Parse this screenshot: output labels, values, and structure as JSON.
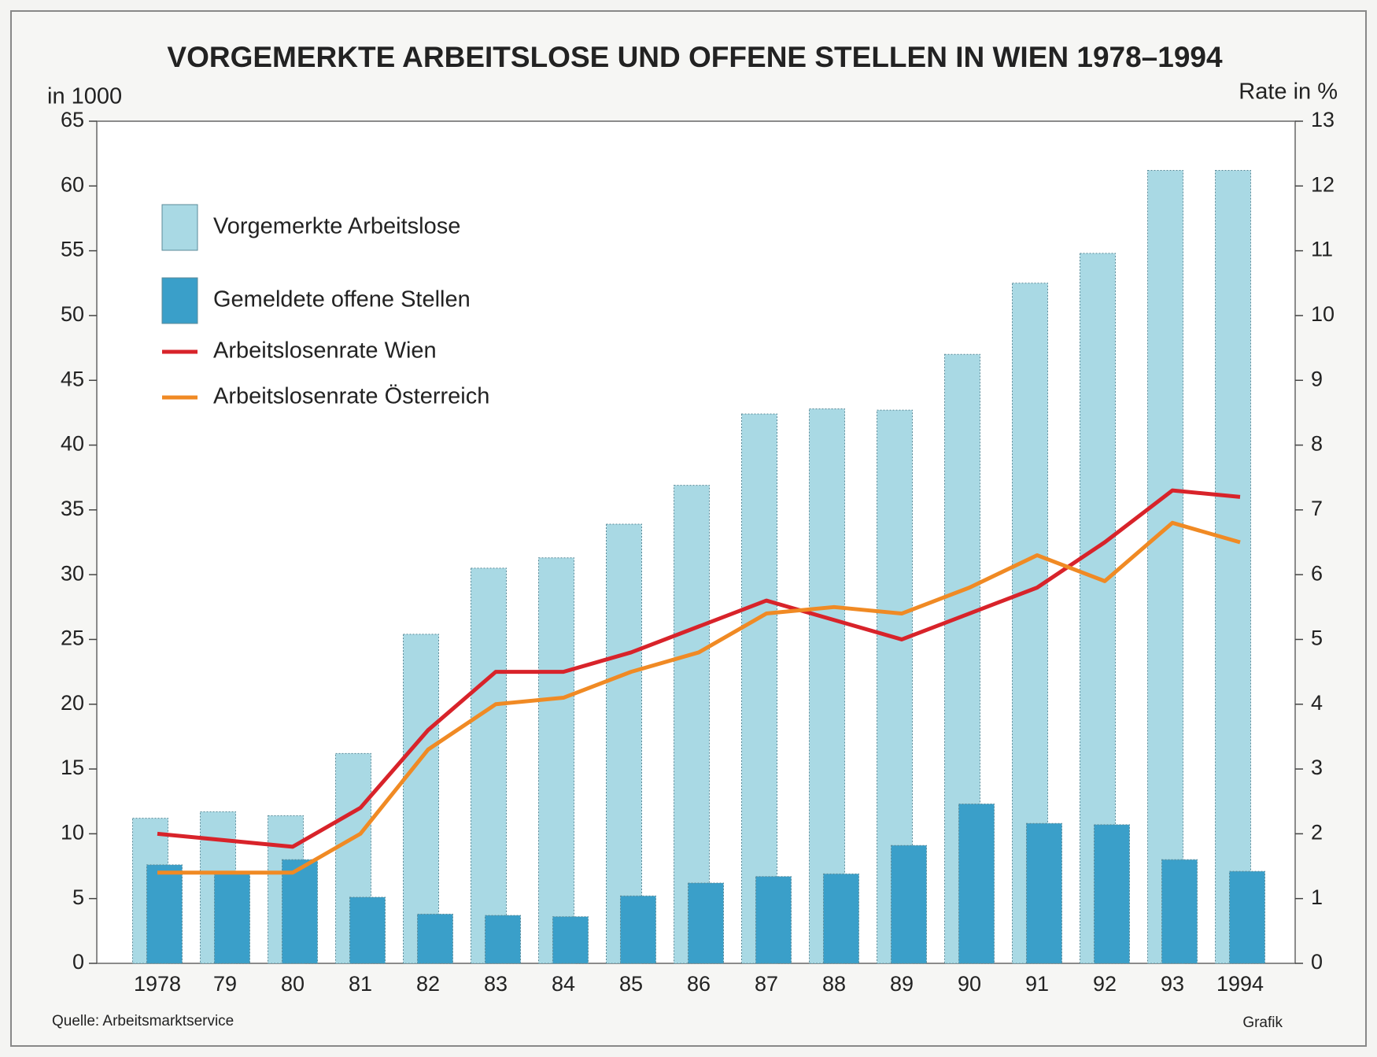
{
  "chart_data": {
    "type": "bar_line",
    "title": "VORGEMERKTE ARBEITSLOSE UND OFFENE STELLEN IN WIEN 1978–1994",
    "y_label": "in 1000",
    "y2_label": "Rate in %",
    "source": "Quelle: Arbeitsmarktservice",
    "credit": "Grafik",
    "categories": [
      "1978",
      "79",
      "80",
      "81",
      "82",
      "83",
      "84",
      "85",
      "86",
      "87",
      "88",
      "89",
      "90",
      "91",
      "92",
      "93",
      "1994"
    ],
    "series": [
      {
        "name": "Vorgemerkte Arbeitslose",
        "type": "bar",
        "color": "#a9d9e4",
        "values": [
          11.2,
          11.7,
          11.4,
          16.2,
          25.4,
          30.5,
          31.3,
          33.9,
          36.9,
          42.4,
          42.8,
          42.7,
          47.0,
          52.5,
          54.8,
          61.2,
          61.2
        ]
      },
      {
        "name": "Gemeldete offene Stellen",
        "type": "bar",
        "color": "#3a9fc9",
        "values": [
          7.6,
          6.9,
          8.0,
          5.1,
          3.8,
          3.7,
          3.6,
          5.2,
          6.2,
          6.7,
          6.9,
          9.1,
          12.3,
          10.8,
          10.7,
          8.0,
          7.1
        ]
      },
      {
        "name": "Arbeitslosenrate Wien",
        "type": "line",
        "axis": "y2",
        "color": "#d8232a",
        "values": [
          2.0,
          1.9,
          1.8,
          2.4,
          3.6,
          4.5,
          4.5,
          4.8,
          5.2,
          5.6,
          5.3,
          5.0,
          5.4,
          5.8,
          6.5,
          7.3,
          7.2
        ]
      },
      {
        "name": "Arbeitslosenrate Österreich",
        "type": "line",
        "axis": "y2",
        "color": "#f08a24",
        "values": [
          1.4,
          1.4,
          1.4,
          2.0,
          3.3,
          4.0,
          4.1,
          4.5,
          4.8,
          5.4,
          5.5,
          5.4,
          5.8,
          6.3,
          5.9,
          6.8,
          6.5
        ]
      }
    ],
    "ylim": [
      0,
      65
    ],
    "yticks": [
      0,
      5,
      10,
      15,
      20,
      25,
      30,
      35,
      40,
      45,
      50,
      55,
      60,
      65
    ],
    "y2lim": [
      0,
      13
    ],
    "y2ticks": [
      0,
      1,
      2,
      3,
      4,
      5,
      6,
      7,
      8,
      9,
      10,
      11,
      12,
      13
    ]
  }
}
